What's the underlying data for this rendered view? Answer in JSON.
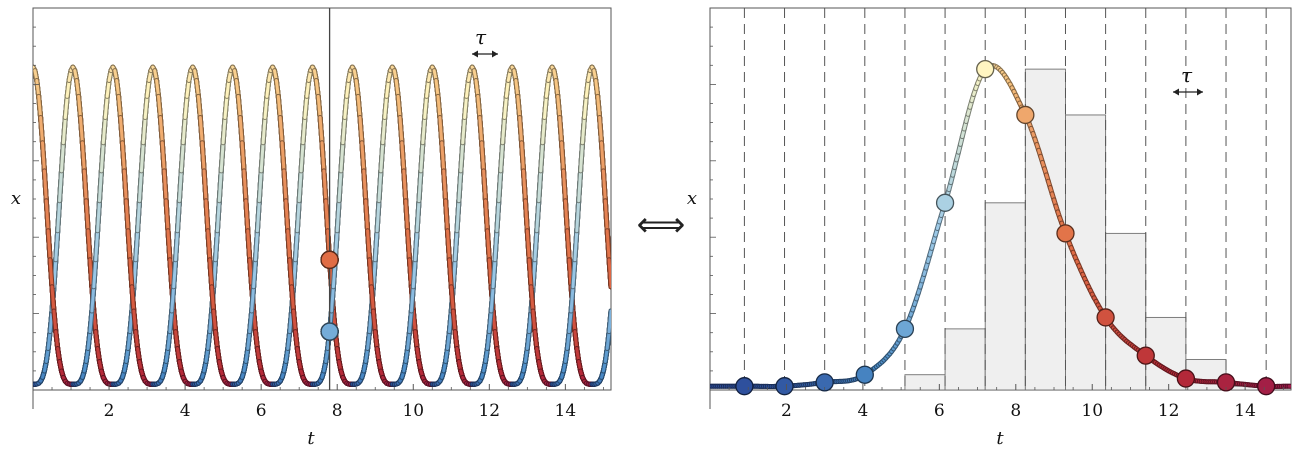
{
  "equivalence_symbol": "⟺",
  "tau_symbol": "τ",
  "colors": {
    "palette": [
      "#2d4e9c",
      "#4a8cc8",
      "#9fcbe8",
      "#fff6c2",
      "#f6c27e",
      "#e06d45",
      "#b72a36",
      "#9e1c4a"
    ],
    "bar_fill": "#efefef",
    "bar_stroke": "#707070",
    "grid_dash": "#555555",
    "marker_line": "#444444"
  },
  "chart_data": [
    {
      "type": "line",
      "xlabel": "t",
      "ylabel": "x",
      "xlim": [
        0,
        15.2
      ],
      "ylim": [
        0,
        1.0
      ],
      "x_ticks": [
        2,
        4,
        6,
        8,
        10,
        12,
        14
      ],
      "series": [
        {
          "phase_offset": 0
        },
        {
          "phase_offset": 1.05
        },
        {
          "phase_offset": 2.1
        },
        {
          "phase_offset": 3.15
        },
        {
          "phase_offset": 4.2
        },
        {
          "phase_offset": 5.25
        },
        {
          "phase_offset": 6.3
        },
        {
          "phase_offset": 7.35
        },
        {
          "phase_offset": 8.4
        },
        {
          "phase_offset": 9.45
        },
        {
          "phase_offset": 10.5
        },
        {
          "phase_offset": 11.55
        },
        {
          "phase_offset": 12.6
        },
        {
          "phase_offset": 13.65
        }
      ],
      "vertical_line_x": 7.8,
      "period_annotation": "τ",
      "grid": false
    },
    {
      "type": "bar",
      "xlabel": "t",
      "ylabel": "x",
      "xlim": [
        0,
        15.2
      ],
      "ylim": [
        0,
        1.0
      ],
      "x_ticks": [
        2,
        4,
        6,
        8,
        10,
        12,
        14
      ],
      "bin_edges": [
        0.9,
        1.95,
        3.0,
        4.05,
        5.1,
        6.15,
        7.2,
        8.25,
        9.3,
        10.35,
        11.4,
        12.45,
        13.5,
        14.55
      ],
      "bar_heights": [
        0.0,
        0.0,
        0.0,
        0.0,
        0.04,
        0.16,
        0.49,
        0.84,
        0.72,
        0.41,
        0.19,
        0.08,
        0.01
      ],
      "curve_points": {
        "x": [
          0.9,
          1.95,
          3.0,
          4.05,
          5.1,
          6.15,
          7.2,
          8.25,
          9.3,
          10.35,
          11.4,
          12.45,
          13.5,
          14.55
        ],
        "y": [
          0.01,
          0.01,
          0.02,
          0.04,
          0.16,
          0.49,
          0.84,
          0.72,
          0.41,
          0.19,
          0.09,
          0.03,
          0.02,
          0.01
        ]
      },
      "period_annotation": "τ",
      "grid": "vertical dashed lines at bin edges"
    }
  ]
}
